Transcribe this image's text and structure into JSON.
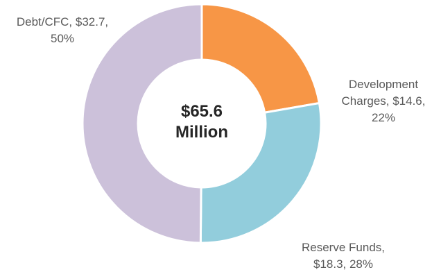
{
  "chart_data": {
    "type": "donut",
    "center_label": "$65.6 Million",
    "values": [
      14.6,
      18.3,
      32.7
    ],
    "value_labels": [
      "Development Charges, $14.6, 22%",
      "Reserve Funds, $18.3, 28%",
      "Debt/CFC, $32.7, 50%"
    ],
    "colors": [
      "#f79646",
      "#92cddc",
      "#ccc1da"
    ]
  }
}
